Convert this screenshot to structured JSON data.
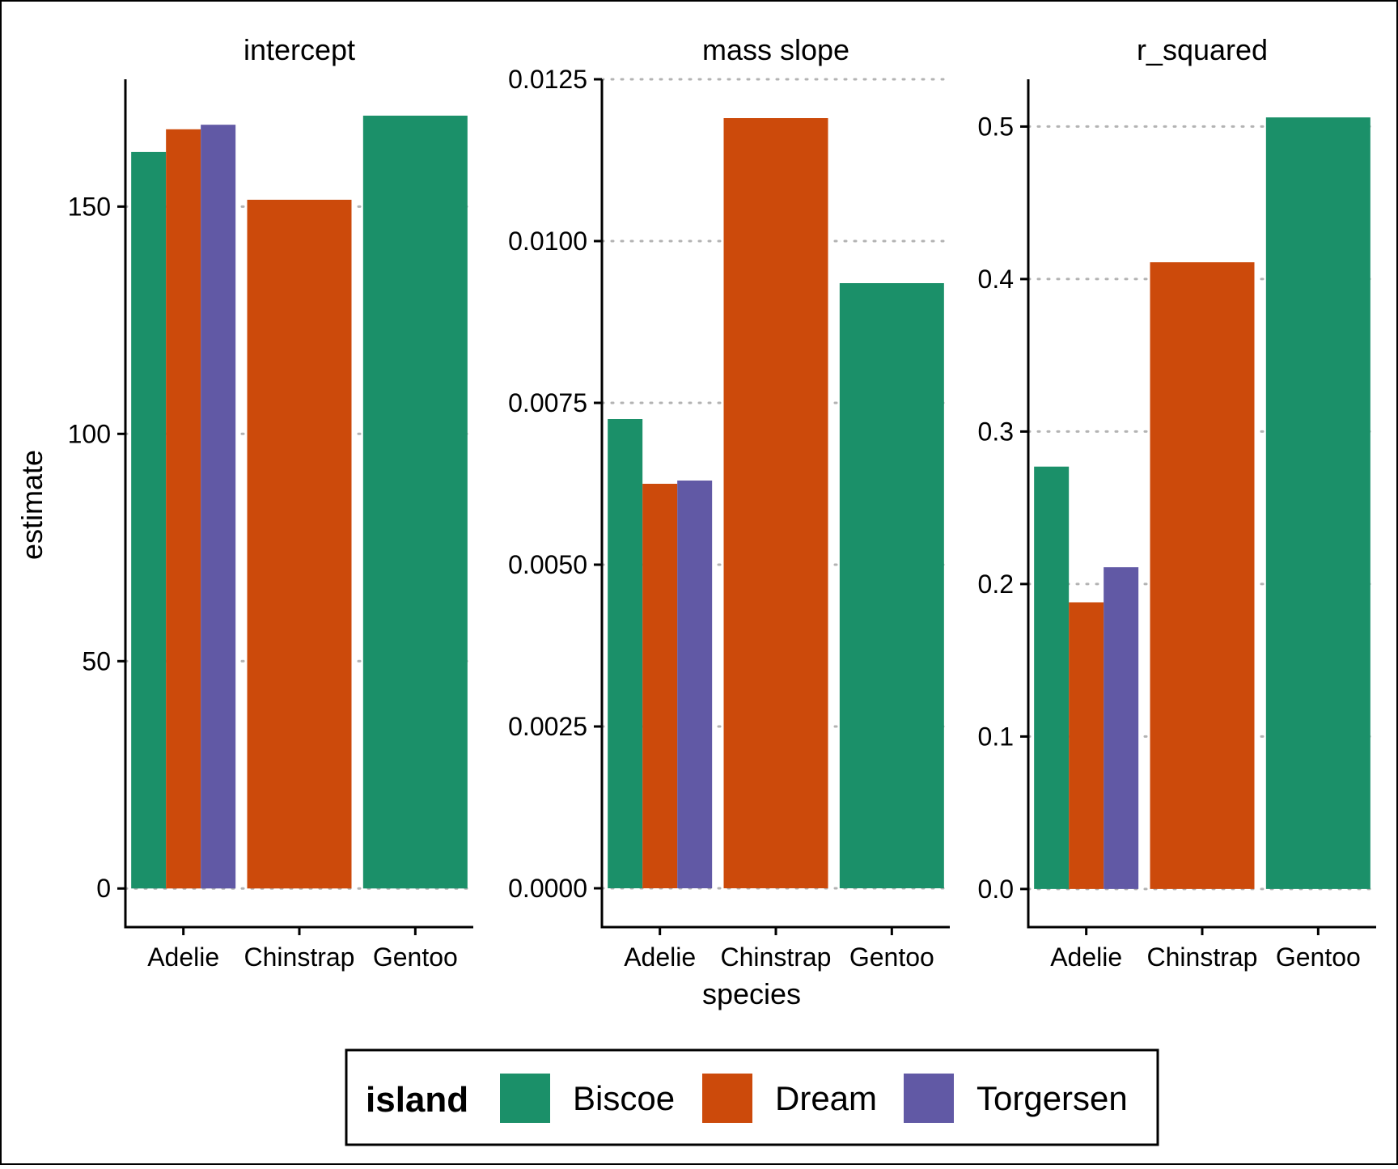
{
  "chart_data": {
    "type": "bar",
    "xlabel": "species",
    "ylabel": "estimate",
    "categories": [
      "Adelie",
      "Chinstrap",
      "Gentoo"
    ],
    "legend": {
      "title": "island",
      "position": "bottom",
      "entries": [
        {
          "name": "Biscoe",
          "color": "#1b9069"
        },
        {
          "name": "Dream",
          "color": "#cc4a0b"
        },
        {
          "name": "Torgersen",
          "color": "#6159a5"
        }
      ]
    },
    "panels": [
      {
        "title": "intercept",
        "ylim": [
          -8.5,
          178
        ],
        "yticks": [
          0,
          50,
          100,
          150
        ],
        "ytick_labels": [
          "0",
          "50",
          "100",
          "150"
        ],
        "bars": [
          {
            "species": "Adelie",
            "island": "Biscoe",
            "value": 162
          },
          {
            "species": "Adelie",
            "island": "Dream",
            "value": 167
          },
          {
            "species": "Adelie",
            "island": "Torgersen",
            "value": 168
          },
          {
            "species": "Chinstrap",
            "island": "Dream",
            "value": 151.5
          },
          {
            "species": "Gentoo",
            "island": "Biscoe",
            "value": 170
          }
        ]
      },
      {
        "title": "mass slope",
        "ylim": [
          -0.0006,
          0.0125
        ],
        "yticks": [
          0,
          0.0025,
          0.005,
          0.0075,
          0.01,
          0.0125
        ],
        "ytick_labels": [
          "0.0000",
          "0.0025",
          "0.0050",
          "0.0075",
          "0.0100",
          "0.0125"
        ],
        "bars": [
          {
            "species": "Adelie",
            "island": "Biscoe",
            "value": 0.00725
          },
          {
            "species": "Adelie",
            "island": "Dream",
            "value": 0.00625
          },
          {
            "species": "Adelie",
            "island": "Torgersen",
            "value": 0.0063
          },
          {
            "species": "Chinstrap",
            "island": "Dream",
            "value": 0.0119
          },
          {
            "species": "Gentoo",
            "island": "Biscoe",
            "value": 0.00935
          }
        ]
      },
      {
        "title": "r_squared",
        "ylim": [
          -0.025,
          0.531
        ],
        "yticks": [
          0,
          0.1,
          0.2,
          0.3,
          0.4,
          0.5
        ],
        "ytick_labels": [
          "0.0",
          "0.1",
          "0.2",
          "0.3",
          "0.4",
          "0.5"
        ],
        "bars": [
          {
            "species": "Adelie",
            "island": "Biscoe",
            "value": 0.277
          },
          {
            "species": "Adelie",
            "island": "Dream",
            "value": 0.188
          },
          {
            "species": "Adelie",
            "island": "Torgersen",
            "value": 0.211
          },
          {
            "species": "Chinstrap",
            "island": "Dream",
            "value": 0.411
          },
          {
            "species": "Gentoo",
            "island": "Biscoe",
            "value": 0.506
          }
        ]
      }
    ]
  }
}
